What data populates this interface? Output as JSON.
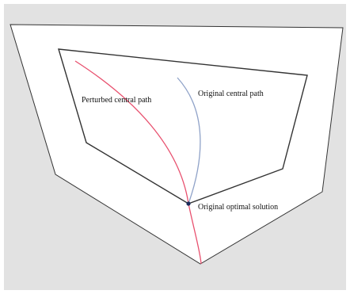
{
  "colors": {
    "frame_background": "#e2e2e2",
    "polytope_fill": "#ffffff",
    "polytope_stroke": "#333333",
    "perturbed_path": "#e8506e",
    "original_path": "#8fa2c8",
    "optimal_point": "#1a2a5a"
  },
  "labels": {
    "perturbed_path": "Perturbed central path",
    "original_path": "Original central path",
    "optimal_solution": "Original optimal solution"
  }
}
